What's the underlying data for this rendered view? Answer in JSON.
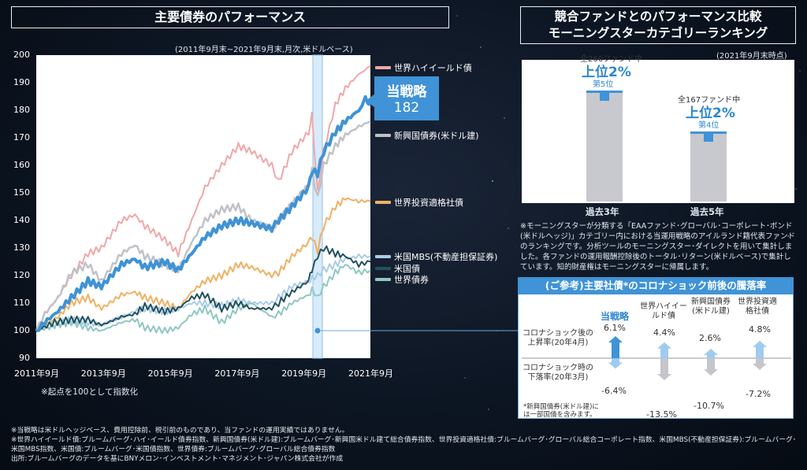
{
  "left_panel": {
    "title": "主要債券のパフォーマンス",
    "period_note": "(2011年9月末~2021年9月末,月次,米ドルベース)",
    "index_note": "※起点を100として指数化",
    "strategy_box": {
      "label": "当戦略",
      "value": "182"
    }
  },
  "chart_data": {
    "type": "line",
    "title": "主要債券のパフォーマンス",
    "ylim": [
      90,
      200
    ],
    "yticks": [
      "200",
      "190",
      "180",
      "170",
      "160",
      "150",
      "140",
      "130",
      "120",
      "110",
      "100",
      "90"
    ],
    "xticks": [
      "2011年9月",
      "2013年9月",
      "2015年9月",
      "2017年9月",
      "2019年9月",
      "2021年9月"
    ],
    "x_start": 2011.75,
    "x_end": 2021.75,
    "highlight_period": "2020年3月",
    "series": [
      {
        "name": "世界ハイイールド債",
        "color": "#f0a7a9",
        "width": 2,
        "values": [
          [
            2011.75,
            100
          ],
          [
            2012.0,
            106
          ],
          [
            2012.4,
            112
          ],
          [
            2012.8,
            120
          ],
          [
            2013.3,
            128
          ],
          [
            2013.7,
            130
          ],
          [
            2014.3,
            140
          ],
          [
            2014.7,
            142
          ],
          [
            2015.0,
            138
          ],
          [
            2015.6,
            133
          ],
          [
            2016.0,
            128
          ],
          [
            2016.4,
            140
          ],
          [
            2016.8,
            152
          ],
          [
            2017.3,
            160
          ],
          [
            2017.8,
            167
          ],
          [
            2018.2,
            165
          ],
          [
            2018.8,
            160
          ],
          [
            2019.0,
            154
          ],
          [
            2019.4,
            165
          ],
          [
            2019.9,
            172
          ],
          [
            2020.0,
            178
          ],
          [
            2020.17,
            150
          ],
          [
            2020.35,
            165
          ],
          [
            2020.7,
            182
          ],
          [
            2021.0,
            188
          ],
          [
            2021.4,
            193
          ],
          [
            2021.75,
            196
          ]
        ]
      },
      {
        "name": "当戦略",
        "color": "#3f93d6",
        "width": 4,
        "values": [
          [
            2011.75,
            100
          ],
          [
            2012.0,
            103
          ],
          [
            2012.4,
            107
          ],
          [
            2012.8,
            112
          ],
          [
            2013.3,
            118
          ],
          [
            2013.7,
            116
          ],
          [
            2014.3,
            124
          ],
          [
            2014.7,
            126
          ],
          [
            2015.0,
            123
          ],
          [
            2015.6,
            125
          ],
          [
            2016.0,
            122
          ],
          [
            2016.4,
            128
          ],
          [
            2016.8,
            134
          ],
          [
            2017.3,
            138
          ],
          [
            2017.8,
            140
          ],
          [
            2018.2,
            139
          ],
          [
            2018.8,
            137
          ],
          [
            2019.0,
            140
          ],
          [
            2019.4,
            145
          ],
          [
            2019.9,
            152
          ],
          [
            2020.0,
            158
          ],
          [
            2020.17,
            157
          ],
          [
            2020.35,
            165
          ],
          [
            2020.7,
            172
          ],
          [
            2021.0,
            176
          ],
          [
            2021.4,
            180
          ],
          [
            2021.6,
            184
          ],
          [
            2021.75,
            182
          ]
        ]
      },
      {
        "name": "新興国債券(米ドル建)",
        "color": "#c0c2c8",
        "width": 2.5,
        "values": [
          [
            2011.75,
            100
          ],
          [
            2012.0,
            106
          ],
          [
            2012.4,
            112
          ],
          [
            2012.8,
            121
          ],
          [
            2013.3,
            124
          ],
          [
            2013.7,
            118
          ],
          [
            2014.3,
            128
          ],
          [
            2014.7,
            131
          ],
          [
            2015.0,
            127
          ],
          [
            2015.6,
            124
          ],
          [
            2016.0,
            122
          ],
          [
            2016.4,
            132
          ],
          [
            2016.8,
            140
          ],
          [
            2017.3,
            144
          ],
          [
            2017.8,
            145
          ],
          [
            2018.2,
            140
          ],
          [
            2018.8,
            137
          ],
          [
            2019.0,
            140
          ],
          [
            2019.4,
            146
          ],
          [
            2019.9,
            153
          ],
          [
            2020.0,
            158
          ],
          [
            2020.17,
            148
          ],
          [
            2020.35,
            160
          ],
          [
            2020.7,
            167
          ],
          [
            2021.0,
            171
          ],
          [
            2021.4,
            174
          ],
          [
            2021.75,
            176
          ]
        ]
      },
      {
        "name": "世界投資適格社債",
        "color": "#f0b163",
        "width": 2,
        "values": [
          [
            2011.75,
            100
          ],
          [
            2012.0,
            102
          ],
          [
            2012.4,
            105
          ],
          [
            2012.8,
            110
          ],
          [
            2013.3,
            112
          ],
          [
            2013.7,
            108
          ],
          [
            2014.3,
            113
          ],
          [
            2014.7,
            114
          ],
          [
            2015.0,
            112
          ],
          [
            2015.6,
            110
          ],
          [
            2016.0,
            108
          ],
          [
            2016.4,
            114
          ],
          [
            2016.8,
            118
          ],
          [
            2017.3,
            120
          ],
          [
            2017.8,
            124
          ],
          [
            2018.2,
            123
          ],
          [
            2018.8,
            120
          ],
          [
            2019.0,
            121
          ],
          [
            2019.4,
            127
          ],
          [
            2019.9,
            132
          ],
          [
            2020.0,
            134
          ],
          [
            2020.17,
            129
          ],
          [
            2020.35,
            138
          ],
          [
            2020.7,
            145
          ],
          [
            2021.0,
            148
          ],
          [
            2021.4,
            147
          ],
          [
            2021.75,
            147
          ]
        ]
      },
      {
        "name": "米国MBS(不動産担保証券)",
        "color": "#a9cbe9",
        "width": 2,
        "values": [
          [
            2011.75,
            100
          ],
          [
            2012.3,
            102
          ],
          [
            2012.8,
            104
          ],
          [
            2013.3,
            103
          ],
          [
            2013.7,
            102
          ],
          [
            2014.3,
            105
          ],
          [
            2014.7,
            107
          ],
          [
            2015.0,
            108
          ],
          [
            2015.6,
            107
          ],
          [
            2016.0,
            108
          ],
          [
            2016.4,
            110
          ],
          [
            2016.8,
            110
          ],
          [
            2017.3,
            109
          ],
          [
            2017.8,
            111
          ],
          [
            2018.2,
            110
          ],
          [
            2018.8,
            110
          ],
          [
            2019.0,
            112
          ],
          [
            2019.4,
            116
          ],
          [
            2019.9,
            118
          ],
          [
            2020.0,
            119
          ],
          [
            2020.17,
            120
          ],
          [
            2020.35,
            122
          ],
          [
            2020.7,
            124
          ],
          [
            2021.0,
            126
          ],
          [
            2021.4,
            127
          ],
          [
            2021.75,
            127
          ]
        ]
      },
      {
        "name": "米国債",
        "color": "#21525e",
        "width": 2,
        "values": [
          [
            2011.75,
            100
          ],
          [
            2012.3,
            103
          ],
          [
            2012.8,
            104
          ],
          [
            2013.3,
            104
          ],
          [
            2013.7,
            102
          ],
          [
            2014.3,
            105
          ],
          [
            2014.7,
            106
          ],
          [
            2015.0,
            109
          ],
          [
            2015.6,
            107
          ],
          [
            2016.0,
            108
          ],
          [
            2016.4,
            112
          ],
          [
            2016.8,
            113
          ],
          [
            2017.3,
            108
          ],
          [
            2017.8,
            110
          ],
          [
            2018.2,
            108
          ],
          [
            2018.8,
            108
          ],
          [
            2019.0,
            110
          ],
          [
            2019.4,
            114
          ],
          [
            2019.9,
            118
          ],
          [
            2020.0,
            122
          ],
          [
            2020.17,
            127
          ],
          [
            2020.35,
            130
          ],
          [
            2020.7,
            128
          ],
          [
            2021.0,
            127
          ],
          [
            2021.4,
            124
          ],
          [
            2021.75,
            125
          ]
        ]
      },
      {
        "name": "世界債券",
        "color": "#8fc7c3",
        "width": 2,
        "values": [
          [
            2011.75,
            100
          ],
          [
            2012.3,
            102
          ],
          [
            2012.8,
            103
          ],
          [
            2013.3,
            101
          ],
          [
            2013.7,
            100
          ],
          [
            2014.3,
            103
          ],
          [
            2014.7,
            104
          ],
          [
            2015.0,
            101
          ],
          [
            2015.6,
            100
          ],
          [
            2016.0,
            101
          ],
          [
            2016.4,
            106
          ],
          [
            2016.8,
            108
          ],
          [
            2017.3,
            103
          ],
          [
            2017.8,
            108
          ],
          [
            2018.2,
            110
          ],
          [
            2018.8,
            105
          ],
          [
            2019.0,
            106
          ],
          [
            2019.4,
            110
          ],
          [
            2019.9,
            113
          ],
          [
            2020.0,
            115
          ],
          [
            2020.17,
            112
          ],
          [
            2020.35,
            116
          ],
          [
            2020.7,
            121
          ],
          [
            2021.0,
            124
          ],
          [
            2021.4,
            121
          ],
          [
            2021.75,
            122
          ]
        ]
      }
    ]
  },
  "right_panel": {
    "title_line1": "競合ファンドとのパフォーマンス比較",
    "title_line2": "モーニングスターカテゴリーランキング",
    "date_note": "(2021年9月末時点)",
    "ranking_data": [
      {
        "label": "過去3年",
        "total": "全266ファンド中",
        "rank": "上位2%",
        "position": "第5位",
        "percentile": 2
      },
      {
        "label": "過去5年",
        "total": "全167ファンド中",
        "rank": "上位2%",
        "position": "第4位",
        "percentile": 2
      }
    ],
    "morningstar_note": "※モーニングスターが分類する「EAAファンド･グローバル･コーポレート･ボンド(米ドルヘッジ)」カテゴリー内における当運用戦略のアイルランド籍代表ファンドのランキングです。分析ツールのモーニングスター･ダイレクトを用いて集計しました。各ファンドの運用報酬控除後のトータル･リターン(米ドルベース)で集計しています。知的財産権はモーニングスターに帰属します。"
  },
  "reference": {
    "title": "(ご参考)主要社債*のコロナショック前後の騰落率",
    "row_up": "コロナショック後の上昇率(20年4月)",
    "row_down": "コロナショック時の下落率(20年3月)",
    "footnote": "*新興国債券(米ドル建)には一部国債を含みます。",
    "columns": [
      {
        "name": "当戦略",
        "up": 6.1,
        "down": -6.4,
        "up_label": "6.1%",
        "down_label": "-6.4%"
      },
      {
        "name": "世界ハイイールド債",
        "up": 4.4,
        "down": -13.5,
        "up_label": "4.4%",
        "down_label": "-13.5%"
      },
      {
        "name": "新興国債券(米ドル建)",
        "up": 2.6,
        "down": -10.7,
        "up_label": "2.6%",
        "down_label": "-10.7%"
      },
      {
        "name": "世界投資適格社債",
        "up": 4.8,
        "down": -7.2,
        "up_label": "4.8%",
        "down_label": "-7.2%"
      }
    ]
  },
  "footer": {
    "line1": "※当戦略は米ドルヘッジベース、費用控除前、税引前のものであり、当ファンドの運用実績ではありません。",
    "line2": "※世界ハイイールド債:ブルームバーグ･ハイ･イールド債券指数、新興国債券(米ドル建):ブルームバーグ･新興国米ドル建て総合債券指数、世界投資適格社債:ブルームバーグ･グローバル総合コーポレート指数、米国MBS(不動産担保証券):ブルームバーグ･米国MBS指数、米国債:ブルームバーグ･米国債指数、世界債券:ブルームバーグ･グローバル総合債券指数",
    "line3": "出所:ブルームバーグのデータを基にBNYメロン･インベストメント･マネジメント･ジャパン株式会社が作成"
  }
}
